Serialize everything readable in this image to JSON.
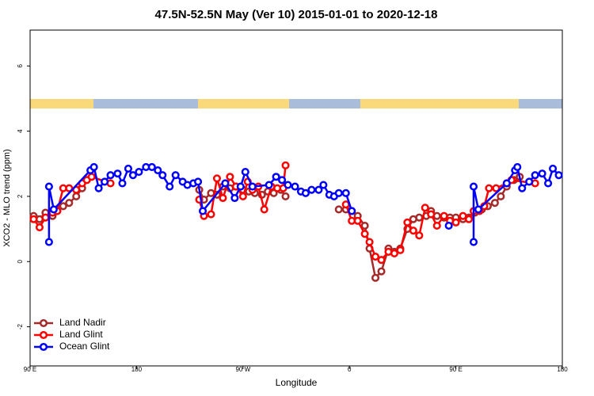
{
  "chart_data": {
    "type": "line",
    "title": "47.5N-52.5N May (Ver 10)   2015-01-01 to 2020-12-18",
    "x_label": "Longitude",
    "y_label": "XCO2 - MLO trend (ppm)",
    "xlim": [
      90,
      540
    ],
    "xticks": [
      {
        "value": 90,
        "label": "90 E"
      },
      180,
      {
        "value": 270,
        "label": "90 W"
      },
      {
        "value": 360,
        "label": "0"
      },
      {
        "value": 450,
        "label": "90 E"
      },
      {
        "value": 540,
        "label": "180"
      }
    ],
    "ylim": [
      -3.2,
      7.1
    ],
    "yticks": [
      -2,
      0,
      2,
      4,
      6
    ],
    "legend": "bottomleft",
    "series": [
      {
        "name": "Land Nadir",
        "color": "#a52a2a",
        "x": [
          93,
          98,
          103,
          109,
          113,
          118,
          123,
          129,
          134,
          null,
          233,
          237,
          243,
          248,
          253,
          259,
          264,
          270,
          275,
          280,
          286,
          291,
          296,
          302,
          306,
          null,
          351,
          357,
          362,
          367,
          373,
          377,
          382,
          387,
          393,
          398,
          403,
          409,
          414,
          419,
          425,
          429,
          434,
          440,
          445,
          450,
          456,
          461,
          466,
          472,
          477,
          483,
          488,
          493,
          499,
          504
        ],
        "values": [
          1.4,
          1.3,
          1.5,
          1.4,
          1.55,
          1.7,
          1.8,
          2.0,
          2.25,
          null,
          2.2,
          1.9,
          2.1,
          2.05,
          2.3,
          2.25,
          2.3,
          2.2,
          2.15,
          2.1,
          2.05,
          2.15,
          2.1,
          2.2,
          2.0,
          null,
          1.6,
          1.6,
          1.55,
          1.4,
          1.1,
          0.4,
          -0.5,
          -0.3,
          0.4,
          0.3,
          0.4,
          1.0,
          1.3,
          1.35,
          1.4,
          1.55,
          1.4,
          1.35,
          1.35,
          1.35,
          1.3,
          1.35,
          1.5,
          1.6,
          1.7,
          1.8,
          2.0,
          2.3,
          2.5,
          2.6
        ]
      },
      {
        "name": "Land Glint",
        "color": "#ff0000",
        "x": [
          93,
          98,
          103,
          109,
          113,
          118,
          123,
          129,
          134,
          138,
          142,
          158,
          null,
          233,
          237,
          243,
          248,
          253,
          259,
          264,
          270,
          274,
          278,
          283,
          288,
          294,
          299,
          304,
          306,
          null,
          357,
          362,
          367,
          373,
          377,
          382,
          387,
          393,
          398,
          403,
          409,
          414,
          419,
          424,
          429,
          434,
          440,
          445,
          450,
          456,
          461,
          465,
          470,
          474,
          478,
          484,
          493,
          497,
          517
        ],
        "values": [
          1.3,
          1.05,
          1.35,
          1.5,
          1.55,
          2.25,
          2.25,
          2.2,
          2.4,
          2.5,
          2.6,
          2.4,
          null,
          1.9,
          1.4,
          1.45,
          2.55,
          1.95,
          2.6,
          2.3,
          2.0,
          2.45,
          2.2,
          2.3,
          1.6,
          2.3,
          2.25,
          2.25,
          2.95,
          null,
          1.75,
          1.25,
          1.25,
          0.85,
          0.6,
          0.15,
          0.05,
          0.3,
          0.25,
          0.35,
          1.2,
          0.95,
          0.8,
          1.65,
          1.45,
          1.1,
          1.4,
          1.25,
          1.2,
          1.4,
          1.3,
          1.55,
          1.55,
          1.7,
          2.25,
          2.25,
          2.4,
          2.5,
          2.4
        ]
      },
      {
        "name": "Ocean Glint",
        "color": "#0000ff",
        "x": [
          106,
          106,
          110,
          141,
          144,
          148,
          153,
          158,
          164,
          168,
          173,
          177,
          182,
          188,
          193,
          198,
          202,
          208,
          213,
          219,
          223,
          228,
          232,
          236,
          255,
          263,
          268,
          272,
          278,
          292,
          298,
          303,
          308,
          314,
          319,
          323,
          328,
          334,
          338,
          343,
          347,
          351,
          357,
          362,
          null,
          444,
          null,
          465,
          465,
          469,
          493,
          500,
          502,
          506,
          512,
          517,
          523,
          528,
          532,
          537
        ],
        "values": [
          0.6,
          2.3,
          1.6,
          2.8,
          2.9,
          2.25,
          2.45,
          2.65,
          2.7,
          2.4,
          2.85,
          2.65,
          2.75,
          2.9,
          2.9,
          2.8,
          2.65,
          2.3,
          2.65,
          2.45,
          2.35,
          2.4,
          2.45,
          1.55,
          2.4,
          1.95,
          2.3,
          2.75,
          2.3,
          2.35,
          2.6,
          2.5,
          2.35,
          2.3,
          2.15,
          2.1,
          2.2,
          2.2,
          2.35,
          2.05,
          2.0,
          2.1,
          2.1,
          1.55,
          null,
          1.1,
          null,
          0.6,
          2.3,
          1.6,
          2.4,
          2.8,
          2.9,
          2.25,
          2.45,
          2.65,
          2.7,
          2.4,
          2.85,
          2.65
        ]
      }
    ]
  }
}
